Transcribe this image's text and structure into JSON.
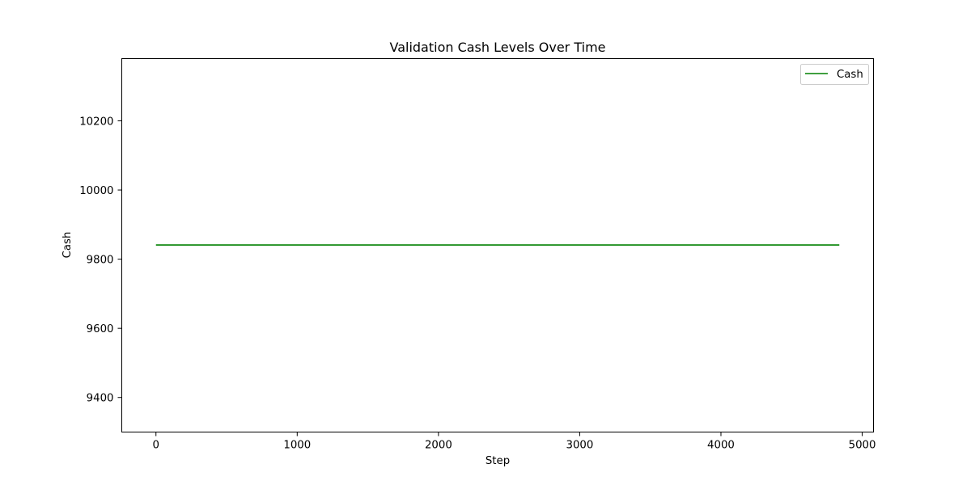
{
  "chart_data": {
    "type": "line",
    "title": "Validation Cash Levels Over Time",
    "xlabel": "Step",
    "ylabel": "Cash",
    "xlim": [
      -242,
      5080
    ],
    "ylim": [
      9300,
      10380
    ],
    "xticks": [
      0,
      1000,
      2000,
      3000,
      4000,
      5000
    ],
    "yticks": [
      9400,
      9600,
      9800,
      10000,
      10200
    ],
    "grid": false,
    "legend_position": "top-right",
    "series": [
      {
        "name": "Cash",
        "color": "#008000",
        "x": [
          0,
          4838
        ],
        "y": [
          9841,
          9841
        ]
      }
    ]
  }
}
